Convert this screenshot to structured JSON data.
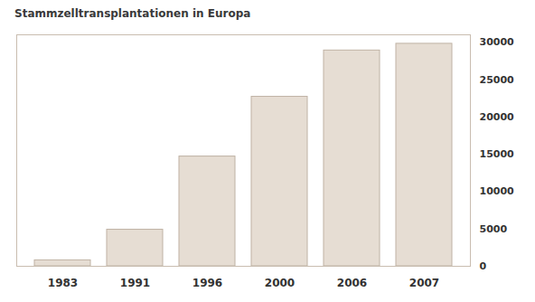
{
  "chart_data": {
    "type": "bar",
    "title": "Stammzelltransplantationen in Europa",
    "categories": [
      "1983",
      "1991",
      "1996",
      "2000",
      "2006",
      "2007"
    ],
    "values": [
      800,
      4900,
      14700,
      22700,
      28900,
      29800
    ],
    "color": "#e6ddd3",
    "ylim": [
      0,
      31000
    ],
    "yticks": [
      0,
      5000,
      10000,
      15000,
      20000,
      25000,
      30000
    ],
    "grid": true
  }
}
